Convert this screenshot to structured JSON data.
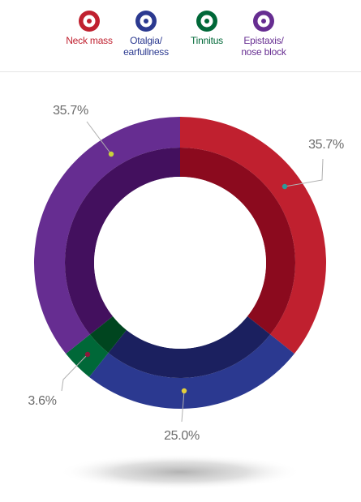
{
  "legend": [
    {
      "label": "Neck mass",
      "color": "#c0202f",
      "icon": "target-icon"
    },
    {
      "label": "Otalgia/\nearfullness",
      "color": "#2b3990",
      "icon": "target-icon"
    },
    {
      "label": "Tinnitus",
      "color": "#006838",
      "icon": "target-icon"
    },
    {
      "label": "Epistaxis/\nnose block",
      "color": "#662d91",
      "icon": "target-icon"
    }
  ],
  "chart_data": {
    "type": "pie",
    "variant": "donut",
    "categories": [
      "Neck mass",
      "Otalgia/earfullness",
      "Tinnitus",
      "Epistaxis/nose block"
    ],
    "values": [
      35.7,
      25.0,
      3.6,
      35.7
    ],
    "labels": [
      "35.7%",
      "25.0%",
      "3.6%",
      "35.7%"
    ],
    "colors": [
      "#c0202f",
      "#2b3990",
      "#006838",
      "#662d91"
    ],
    "inner_colors": [
      "#8b0a1e",
      "#1b205f",
      "#00451f",
      "#43105e"
    ],
    "marker_colors": [
      "#2c9a9a",
      "#e3cf3a",
      "#8b1a3a",
      "#c8d23a"
    ],
    "start": "12 o'clock",
    "direction": "clockwise",
    "legend_position": "top"
  }
}
